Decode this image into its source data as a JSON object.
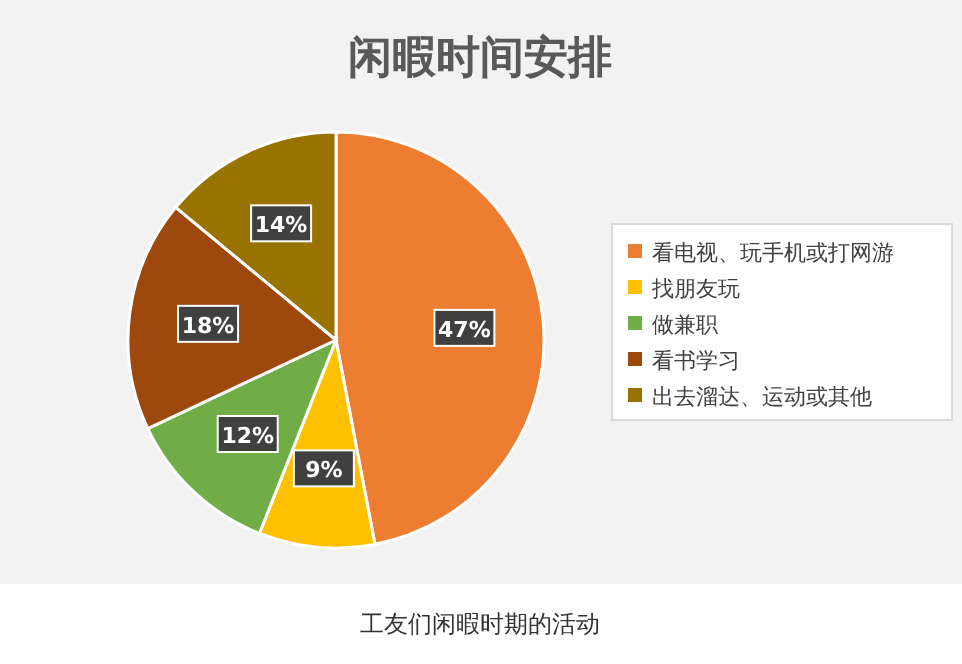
{
  "chart_data": {
    "type": "pie",
    "title": "闲暇时间安排",
    "categories": [
      "看电视、玩手机或打网游",
      "找朋友玩",
      "做兼职",
      "看书学习",
      "出去溜达、运动或其他"
    ],
    "values": [
      47,
      9,
      12,
      18,
      14
    ],
    "colors": [
      "#ed7d31",
      "#ffc000",
      "#70ad47",
      "#9e480e",
      "#997300"
    ],
    "value_labels": [
      "47%",
      "9%",
      "12%",
      "18%",
      "14%"
    ],
    "legend": "right",
    "annotations": [
      "工友们闲暇时期的活动"
    ]
  }
}
